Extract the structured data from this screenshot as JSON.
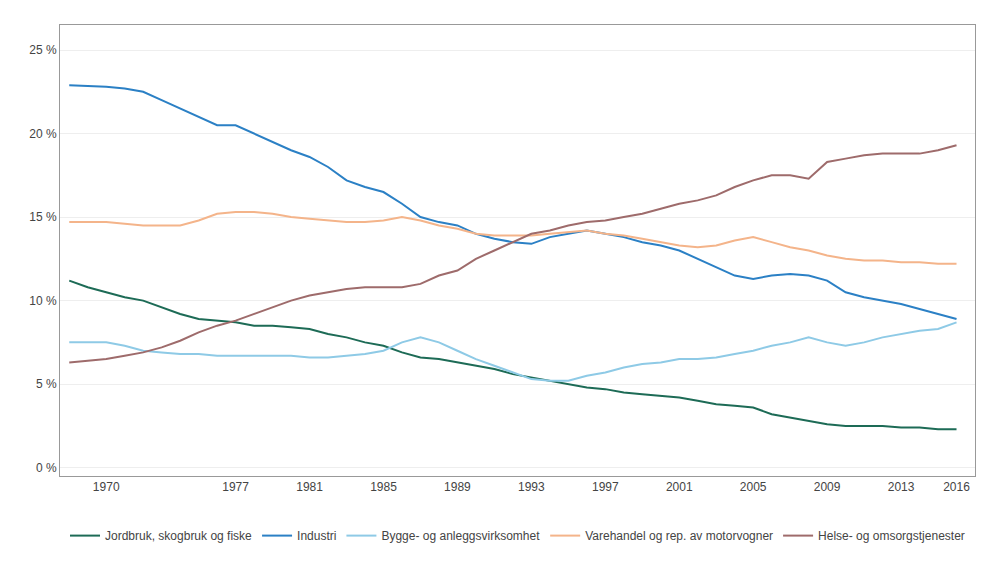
{
  "chart_data": {
    "type": "line",
    "x": [
      1968,
      1969,
      1970,
      1971,
      1972,
      1973,
      1974,
      1975,
      1976,
      1977,
      1978,
      1979,
      1980,
      1981,
      1982,
      1983,
      1984,
      1985,
      1986,
      1987,
      1988,
      1989,
      1990,
      1991,
      1992,
      1993,
      1994,
      1995,
      1996,
      1997,
      1998,
      1999,
      2000,
      2001,
      2002,
      2003,
      2004,
      2005,
      2006,
      2007,
      2008,
      2009,
      2010,
      2011,
      2012,
      2013,
      2014,
      2015,
      2016
    ],
    "series": [
      {
        "name": "Jordbruk, skogbruk og fiske",
        "color": "#1d6b56",
        "values": [
          11.2,
          10.8,
          10.5,
          10.2,
          10.0,
          9.6,
          9.2,
          8.9,
          8.8,
          8.7,
          8.5,
          8.5,
          8.4,
          8.3,
          8.0,
          7.8,
          7.5,
          7.3,
          6.9,
          6.6,
          6.5,
          6.3,
          6.1,
          5.9,
          5.6,
          5.4,
          5.2,
          5.0,
          4.8,
          4.7,
          4.5,
          4.4,
          4.3,
          4.2,
          4.0,
          3.8,
          3.7,
          3.6,
          3.2,
          3.0,
          2.8,
          2.6,
          2.5,
          2.5,
          2.5,
          2.4,
          2.4,
          2.3,
          2.3
        ]
      },
      {
        "name": "Industri",
        "color": "#2b80c5",
        "values": [
          22.9,
          22.85,
          22.8,
          22.7,
          22.5,
          22.0,
          21.5,
          21.0,
          20.5,
          20.5,
          20.0,
          19.5,
          19.0,
          18.6,
          18.0,
          17.2,
          16.8,
          16.5,
          15.8,
          15.0,
          14.7,
          14.5,
          14.0,
          13.7,
          13.5,
          13.4,
          13.8,
          14.0,
          14.2,
          14.0,
          13.8,
          13.5,
          13.3,
          13.0,
          12.5,
          12.0,
          11.5,
          11.3,
          11.5,
          11.6,
          11.5,
          11.2,
          10.5,
          10.2,
          10.0,
          9.8,
          9.5,
          9.2,
          8.9
        ]
      },
      {
        "name": "Bygge- og anleggsvirksomhet",
        "color": "#8ecae6",
        "values": [
          7.5,
          7.5,
          7.5,
          7.3,
          7.0,
          6.9,
          6.8,
          6.8,
          6.7,
          6.7,
          6.7,
          6.7,
          6.7,
          6.6,
          6.6,
          6.7,
          6.8,
          7.0,
          7.5,
          7.8,
          7.5,
          7.0,
          6.5,
          6.1,
          5.7,
          5.3,
          5.2,
          5.2,
          5.5,
          5.7,
          6.0,
          6.2,
          6.3,
          6.5,
          6.5,
          6.6,
          6.8,
          7.0,
          7.3,
          7.5,
          7.8,
          7.5,
          7.3,
          7.5,
          7.8,
          8.0,
          8.2,
          8.3,
          8.7
        ]
      },
      {
        "name": "Varehandel og rep. av motorvogner",
        "color": "#f4b48a",
        "values": [
          14.7,
          14.7,
          14.7,
          14.6,
          14.5,
          14.5,
          14.5,
          14.8,
          15.2,
          15.3,
          15.3,
          15.2,
          15.0,
          14.9,
          14.8,
          14.7,
          14.7,
          14.8,
          15.0,
          14.8,
          14.5,
          14.3,
          14.0,
          13.9,
          13.9,
          13.9,
          14.0,
          14.1,
          14.2,
          14.0,
          13.9,
          13.7,
          13.5,
          13.3,
          13.2,
          13.3,
          13.6,
          13.8,
          13.5,
          13.2,
          13.0,
          12.7,
          12.5,
          12.4,
          12.4,
          12.3,
          12.3,
          12.2,
          12.2
        ]
      },
      {
        "name": "Helse- og omsorgstjenester",
        "color": "#9e6b6b",
        "values": [
          6.3,
          6.4,
          6.5,
          6.7,
          6.9,
          7.2,
          7.6,
          8.1,
          8.5,
          8.8,
          9.2,
          9.6,
          10.0,
          10.3,
          10.5,
          10.7,
          10.8,
          10.8,
          10.8,
          11.0,
          11.5,
          11.8,
          12.5,
          13.0,
          13.5,
          14.0,
          14.2,
          14.5,
          14.7,
          14.8,
          15.0,
          15.2,
          15.5,
          15.8,
          16.0,
          16.3,
          16.8,
          17.2,
          17.5,
          17.5,
          17.3,
          18.3,
          18.5,
          18.7,
          18.8,
          18.8,
          18.8,
          19.0,
          19.3
        ]
      }
    ],
    "xlim": [
      1967.5,
      2017
    ],
    "xticks": [
      1970,
      1977,
      1981,
      1985,
      1989,
      1993,
      1997,
      2001,
      2005,
      2009,
      2013,
      2016
    ],
    "ylim": [
      -0.5,
      26.5
    ],
    "yticks": [
      {
        "value": 0,
        "label": "0 %"
      },
      {
        "value": 5,
        "label": "5 %"
      },
      {
        "value": 10,
        "label": "10 %"
      },
      {
        "value": 15,
        "label": "15 %"
      },
      {
        "value": 20,
        "label": "20 %"
      },
      {
        "value": 25,
        "label": "25 %"
      }
    ],
    "grid": true,
    "legend": "bottom"
  }
}
